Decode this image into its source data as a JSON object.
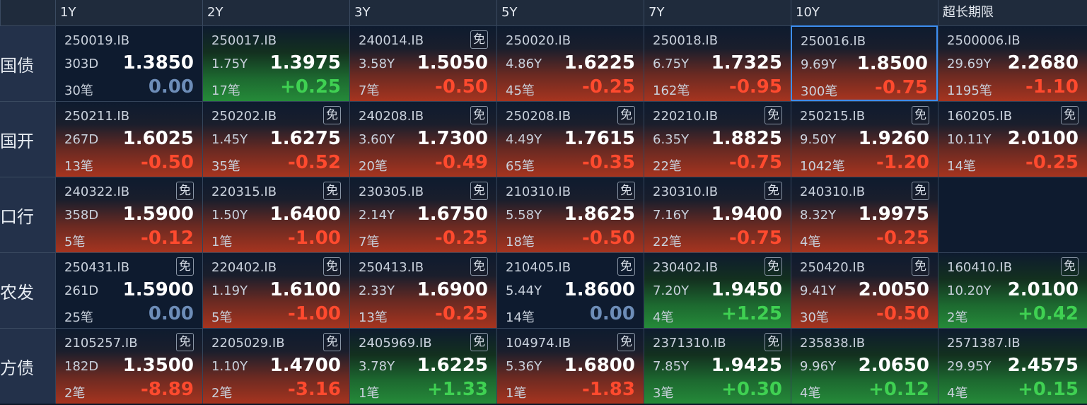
{
  "header": {
    "columns": [
      "1Y",
      "2Y",
      "3Y",
      "5Y",
      "7Y",
      "10Y",
      "超长期限"
    ]
  },
  "rows": [
    {
      "label": "国债",
      "cells": [
        {
          "code": "250019.IB",
          "term": "303D",
          "yield": "1.3850",
          "count": "30笔",
          "change": "0.00"
        },
        {
          "code": "250017.IB",
          "term": "1.75Y",
          "yield": "1.3975",
          "count": "17笔",
          "change": "+0.25"
        },
        {
          "code": "240014.IB",
          "badge": "免",
          "term": "3.58Y",
          "yield": "1.5050",
          "count": "7笔",
          "change": "-0.50"
        },
        {
          "code": "250020.IB",
          "term": "4.86Y",
          "yield": "1.6225",
          "count": "45笔",
          "change": "-0.25"
        },
        {
          "code": "250018.IB",
          "term": "6.75Y",
          "yield": "1.7325",
          "count": "162笔",
          "change": "-0.95"
        },
        {
          "code": "250016.IB",
          "term": "9.69Y",
          "yield": "1.8500",
          "count": "300笔",
          "change": "-0.75",
          "selected": true
        },
        {
          "code": "2500006.IB",
          "term": "29.69Y",
          "yield": "2.2680",
          "count": "1195笔",
          "change": "-1.10"
        }
      ]
    },
    {
      "label": "国开",
      "cells": [
        {
          "code": "250211.IB",
          "term": "267D",
          "yield": "1.6025",
          "count": "13笔",
          "change": "-0.50"
        },
        {
          "code": "250202.IB",
          "badge": "免",
          "term": "1.45Y",
          "yield": "1.6275",
          "count": "35笔",
          "change": "-0.52"
        },
        {
          "code": "240208.IB",
          "badge": "免",
          "term": "3.60Y",
          "yield": "1.7300",
          "count": "20笔",
          "change": "-0.49"
        },
        {
          "code": "250208.IB",
          "badge": "免",
          "term": "4.49Y",
          "yield": "1.7615",
          "count": "65笔",
          "change": "-0.35"
        },
        {
          "code": "220210.IB",
          "badge": "免",
          "term": "6.35Y",
          "yield": "1.8825",
          "count": "22笔",
          "change": "-0.75"
        },
        {
          "code": "250215.IB",
          "badge": "免",
          "term": "9.50Y",
          "yield": "1.9260",
          "count": "1042笔",
          "change": "-1.20"
        },
        {
          "code": "160205.IB",
          "badge": "免",
          "term": "10.11Y",
          "yield": "2.0100",
          "count": "14笔",
          "change": "-0.25"
        }
      ]
    },
    {
      "label": "口行",
      "cells": [
        {
          "code": "240322.IB",
          "badge": "免",
          "term": "358D",
          "yield": "1.5900",
          "count": "5笔",
          "change": "-0.12"
        },
        {
          "code": "220315.IB",
          "badge": "免",
          "term": "1.50Y",
          "yield": "1.6400",
          "count": "1笔",
          "change": "-1.00"
        },
        {
          "code": "230305.IB",
          "badge": "免",
          "term": "2.14Y",
          "yield": "1.6750",
          "count": "7笔",
          "change": "-0.25"
        },
        {
          "code": "210310.IB",
          "badge": "免",
          "term": "5.58Y",
          "yield": "1.8625",
          "count": "18笔",
          "change": "-0.50"
        },
        {
          "code": "230310.IB",
          "badge": "免",
          "term": "7.16Y",
          "yield": "1.9400",
          "count": "22笔",
          "change": "-0.75"
        },
        {
          "code": "240310.IB",
          "badge": "免",
          "term": "8.32Y",
          "yield": "1.9975",
          "count": "4笔",
          "change": "-0.25"
        },
        null
      ]
    },
    {
      "label": "农发",
      "cells": [
        {
          "code": "250431.IB",
          "badge": "免",
          "term": "261D",
          "yield": "1.5900",
          "count": "25笔",
          "change": "0.00"
        },
        {
          "code": "220402.IB",
          "badge": "免",
          "term": "1.19Y",
          "yield": "1.6100",
          "count": "5笔",
          "change": "-1.00"
        },
        {
          "code": "250413.IB",
          "badge": "免",
          "term": "2.33Y",
          "yield": "1.6900",
          "count": "13笔",
          "change": "-0.25"
        },
        {
          "code": "210405.IB",
          "badge": "免",
          "term": "5.44Y",
          "yield": "1.8600",
          "count": "14笔",
          "change": "0.00"
        },
        {
          "code": "230402.IB",
          "badge": "免",
          "term": "7.20Y",
          "yield": "1.9450",
          "count": "4笔",
          "change": "+1.25"
        },
        {
          "code": "250420.IB",
          "badge": "免",
          "term": "9.41Y",
          "yield": "2.0050",
          "count": "30笔",
          "change": "-0.50"
        },
        {
          "code": "160410.IB",
          "badge": "免",
          "term": "10.20Y",
          "yield": "2.0100",
          "count": "2笔",
          "change": "+0.42"
        }
      ]
    },
    {
      "label": "方债",
      "cells": [
        {
          "code": "2105257.IB",
          "badge": "免",
          "term": "182D",
          "yield": "1.3500",
          "count": "2笔",
          "change": "-8.89"
        },
        {
          "code": "2205029.IB",
          "badge": "免",
          "term": "1.10Y",
          "yield": "1.4700",
          "count": "2笔",
          "change": "-3.16"
        },
        {
          "code": "2405969.IB",
          "badge": "免",
          "term": "3.78Y",
          "yield": "1.6225",
          "count": "1笔",
          "change": "+1.33"
        },
        {
          "code": "104974.IB",
          "badge": "免",
          "term": "5.36Y",
          "yield": "1.6800",
          "count": "1笔",
          "change": "-1.83"
        },
        {
          "code": "2371310.IB",
          "badge": "免",
          "term": "7.85Y",
          "yield": "1.9425",
          "count": "3笔",
          "change": "+0.30"
        },
        {
          "code": "235838.IB",
          "term": "9.96Y",
          "yield": "2.0650",
          "count": "4笔",
          "change": "+0.12"
        },
        {
          "code": "2571387.IB",
          "term": "29.95Y",
          "yield": "2.4575",
          "count": "4笔",
          "change": "+0.15"
        }
      ]
    }
  ]
}
